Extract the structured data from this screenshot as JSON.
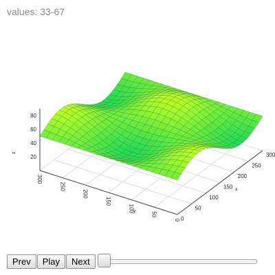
{
  "header": {
    "values_label": "values: 33-67"
  },
  "controls": {
    "prev_label": "Prev",
    "play_label": "Play",
    "next_label": "Next",
    "slider_fraction": 0.0
  },
  "colors": {
    "surface_low": "#22dd55",
    "surface_high": "#bbff22",
    "edge": "#335533",
    "axis": "#444444",
    "grid": "#dcdcdc"
  },
  "chart_data": {
    "type": "surface",
    "title": "",
    "xlabel": "x",
    "ylabel": "y",
    "zlabel": "z",
    "x_ticks": [
      "0",
      "50",
      "100",
      "150",
      "200",
      "250",
      "300"
    ],
    "y_ticks": [
      "0",
      "50",
      "100",
      "150",
      "200",
      "250",
      "300"
    ],
    "z_ticks": [
      "20",
      "40",
      "60",
      "80"
    ],
    "xlim": [
      0,
      300
    ],
    "ylim": [
      0,
      300
    ],
    "zlim": [
      0,
      100
    ],
    "grid": true,
    "surface": {
      "function": "z = 50 + 17*sin(2*pi*x/300)*cos(2*pi*y/300)",
      "z_range": [
        33,
        67
      ]
    }
  }
}
